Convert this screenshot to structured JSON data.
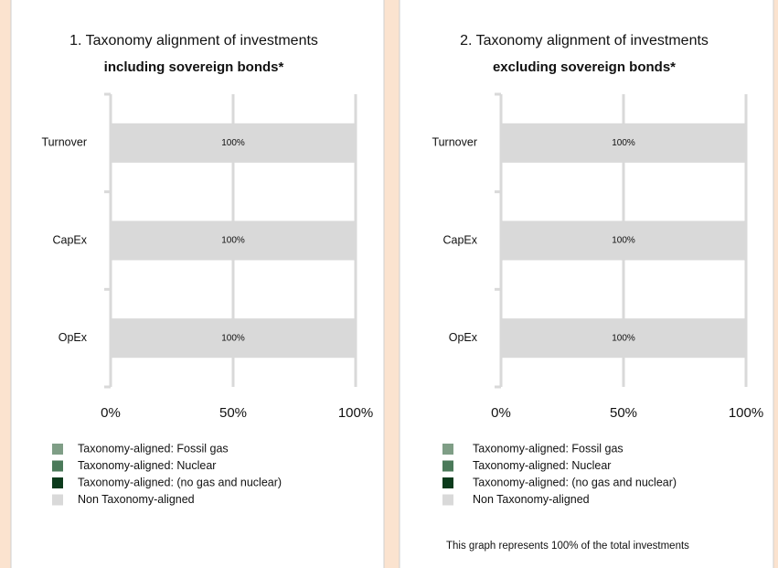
{
  "chart_data": [
    {
      "type": "bar",
      "orientation": "horizontal",
      "title": "1. Taxonomy alignment of investments",
      "subtitle": "including sovereign bonds*",
      "categories": [
        "Turnover",
        "CapEx",
        "OpEx"
      ],
      "series": [
        {
          "name": "Taxonomy-aligned: Fossil gas",
          "color": "#7f9e86",
          "values": [
            0,
            0,
            0
          ]
        },
        {
          "name": "Taxonomy-aligned: Nuclear",
          "color": "#4b7a5a",
          "values": [
            0,
            0,
            0
          ]
        },
        {
          "name": "Taxonomy-aligned: (no gas and nuclear)",
          "color": "#0c3b1c",
          "values": [
            0,
            0,
            0
          ]
        },
        {
          "name": "Non Taxonomy-aligned",
          "color": "#d9d9d9",
          "values": [
            100,
            100,
            100
          ],
          "value_labels": [
            "100%",
            "100%",
            "100%"
          ]
        }
      ],
      "xlim": [
        0,
        100
      ],
      "xticks": [
        {
          "value": 0,
          "label": "0%"
        },
        {
          "value": 50,
          "label": "50%"
        },
        {
          "value": 100,
          "label": "100%"
        }
      ],
      "grid": true
    },
    {
      "type": "bar",
      "orientation": "horizontal",
      "title": "2. Taxonomy alignment of investments",
      "subtitle": "excluding sovereign bonds*",
      "categories": [
        "Turnover",
        "CapEx",
        "OpEx"
      ],
      "series": [
        {
          "name": "Taxonomy-aligned: Fossil gas",
          "color": "#7f9e86",
          "values": [
            0,
            0,
            0
          ]
        },
        {
          "name": "Taxonomy-aligned: Nuclear",
          "color": "#4b7a5a",
          "values": [
            0,
            0,
            0
          ]
        },
        {
          "name": "Taxonomy-aligned: (no gas and nuclear)",
          "color": "#0c3b1c",
          "values": [
            0,
            0,
            0
          ]
        },
        {
          "name": "Non Taxonomy-aligned",
          "color": "#d9d9d9",
          "values": [
            100,
            100,
            100
          ],
          "value_labels": [
            "100%",
            "100%",
            "100%"
          ]
        }
      ],
      "xlim": [
        0,
        100
      ],
      "xticks": [
        {
          "value": 0,
          "label": "0%"
        },
        {
          "value": 50,
          "label": "50%"
        },
        {
          "value": 100,
          "label": "100%"
        }
      ],
      "grid": true,
      "footnote": "This graph represents 100% of the total investments"
    }
  ]
}
